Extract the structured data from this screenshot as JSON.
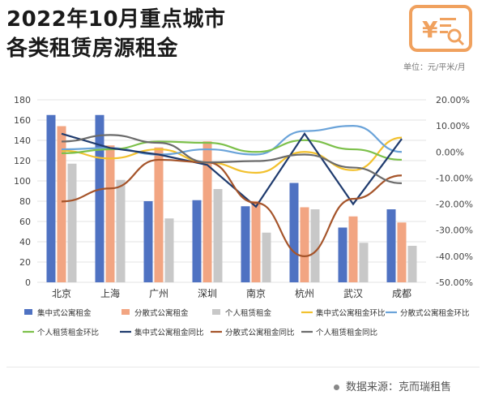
{
  "header": {
    "title_line1": "2022年10月重点城市",
    "title_line2": "各类租赁房源租金",
    "unit": "单位：元/平米/月",
    "logo_icon": "yuan-magnifier-icon"
  },
  "footer": {
    "source": "数据来源：克而瑞租售"
  },
  "chart_data": {
    "type": "bar",
    "categories": [
      "北京",
      "上海",
      "广州",
      "深圳",
      "南京",
      "杭州",
      "武汉",
      "成都"
    ],
    "ylim": [
      0,
      180
    ],
    "yticks": [
      0,
      20,
      40,
      60,
      80,
      100,
      120,
      140,
      160,
      180
    ],
    "y2lim": [
      -50,
      20
    ],
    "y2ticks": [
      "20.00%",
      "10.00%",
      "0.00%",
      "-10.00%",
      "-20.00%",
      "-30.00%",
      "-40.00%",
      "-50.00%"
    ],
    "y2tick_values": [
      20,
      10,
      0,
      -10,
      -20,
      -30,
      -40,
      -50
    ],
    "bars": [
      {
        "name": "集中式公寓租金",
        "color": "#4f72c2",
        "values": [
          165,
          165,
          80,
          81,
          75,
          98,
          54,
          72
        ]
      },
      {
        "name": "分散式公寓租金",
        "color": "#f2a582",
        "values": [
          154,
          135,
          133,
          139,
          80,
          74,
          65,
          59
        ]
      },
      {
        "name": "个人租赁租金",
        "color": "#c8c8c8",
        "values": [
          117,
          101,
          63,
          92,
          49,
          72,
          39,
          36
        ]
      }
    ],
    "lines": [
      {
        "name": "集中式公寓租金环比",
        "color": "#f2c12e",
        "values": [
          0.5,
          -2.5,
          1,
          -4,
          -8,
          0,
          -7,
          5.5
        ]
      },
      {
        "name": "分散式公寓租金环比",
        "color": "#6aa3d9",
        "values": [
          1,
          1.5,
          -1,
          1,
          -1,
          8,
          10,
          0
        ]
      },
      {
        "name": "个人租赁租金环比",
        "color": "#7cc04a",
        "values": [
          -0.5,
          1,
          4,
          3.5,
          0,
          4.5,
          1,
          -3
        ]
      },
      {
        "name": "集中式公寓租金同比",
        "color": "#1f3b6e",
        "values": [
          7,
          1.5,
          -1,
          -5,
          -21,
          7,
          -20,
          5
        ]
      },
      {
        "name": "分散式公寓租金同比",
        "color": "#a5542a",
        "values": [
          -19,
          -14,
          -3,
          -4,
          -19.5,
          -40,
          -18,
          -9
        ]
      },
      {
        "name": "个人租赁租金同比",
        "color": "#6b6b6b",
        "values": [
          4,
          6.5,
          3.5,
          -4,
          -3.5,
          -1,
          -6,
          -12
        ]
      }
    ]
  }
}
